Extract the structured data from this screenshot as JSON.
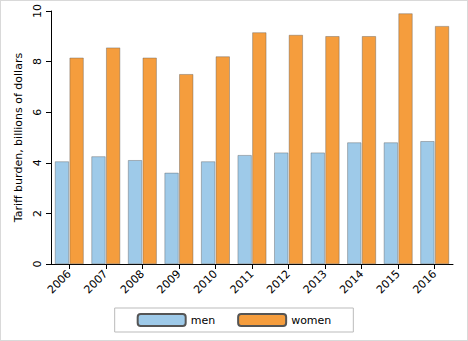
{
  "chart_data": {
    "type": "bar",
    "y_label": "Tariff burden, billions of dollars",
    "categories": [
      "2006",
      "2007",
      "2008",
      "2009",
      "2010",
      "2011",
      "2012",
      "2013",
      "2014",
      "2015",
      "2016"
    ],
    "series": [
      {
        "name": "men",
        "color": "#9ecae9",
        "values": [
          4.05,
          4.25,
          4.1,
          3.6,
          4.05,
          4.3,
          4.4,
          4.4,
          4.8,
          4.8,
          4.85
        ]
      },
      {
        "name": "women",
        "color": "#f59d3d",
        "values": [
          8.15,
          8.55,
          8.15,
          7.5,
          8.2,
          9.15,
          9.05,
          9.0,
          9.0,
          9.9,
          9.4
        ]
      }
    ],
    "ylim": [
      0,
      10
    ],
    "yticks": [
      0,
      2,
      4,
      6,
      8,
      10
    ],
    "grid": false,
    "legend": "bottom"
  }
}
